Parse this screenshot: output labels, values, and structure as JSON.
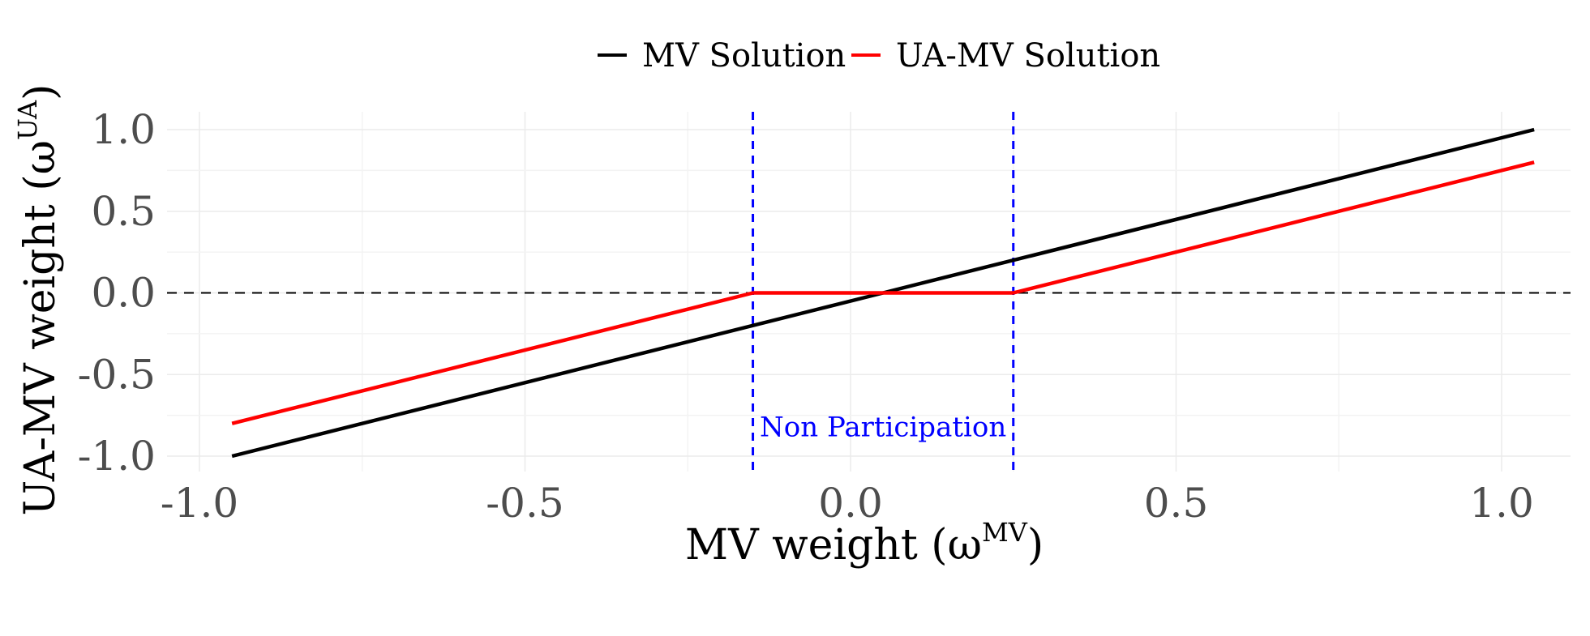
{
  "chart_data": {
    "type": "line",
    "title": "",
    "xlabel": {
      "main": "MV weight (ω",
      "sup": "MV",
      "close": ")"
    },
    "ylabel": {
      "main": "UA-MV weight (ω",
      "sup": "UA",
      "close": ")"
    },
    "xlim": [
      -1.1,
      1.15
    ],
    "ylim": [
      -1.1,
      1.1
    ],
    "x_ticks": [
      -1.0,
      -0.5,
      0.0,
      0.5,
      1.0
    ],
    "x_tick_labels": [
      "-1.0",
      "-0.5",
      "0.0",
      "0.5",
      "1.0"
    ],
    "y_ticks": [
      -1.0,
      -0.5,
      0.0,
      0.5,
      1.0
    ],
    "y_tick_labels": [
      "-1.0",
      "-0.5",
      "0.0",
      "0.5",
      "1.0"
    ],
    "grid": true,
    "legend_position": "top",
    "series": [
      {
        "name": "MV Solution",
        "color": "#000000",
        "x": [
          -0.95,
          0.05,
          1.05
        ],
        "y": [
          -1.0,
          0.0,
          1.0
        ]
      },
      {
        "name": "UA-MV Solution",
        "color": "#ff0000",
        "x": [
          -0.95,
          -0.15,
          0.25,
          1.05
        ],
        "y": [
          -0.8,
          0.0,
          0.0,
          0.8
        ]
      }
    ],
    "hlines": [
      {
        "y": 0.0,
        "color": "#000000",
        "style": "dashed"
      }
    ],
    "vlines": [
      {
        "x": -0.15,
        "color": "#0000ff",
        "style": "dashed"
      },
      {
        "x": 0.25,
        "color": "#0000ff",
        "style": "dashed"
      }
    ],
    "annotations": [
      {
        "text": "Non Participation",
        "x": 0.05,
        "y": -0.82,
        "color": "#0000ff"
      }
    ]
  }
}
